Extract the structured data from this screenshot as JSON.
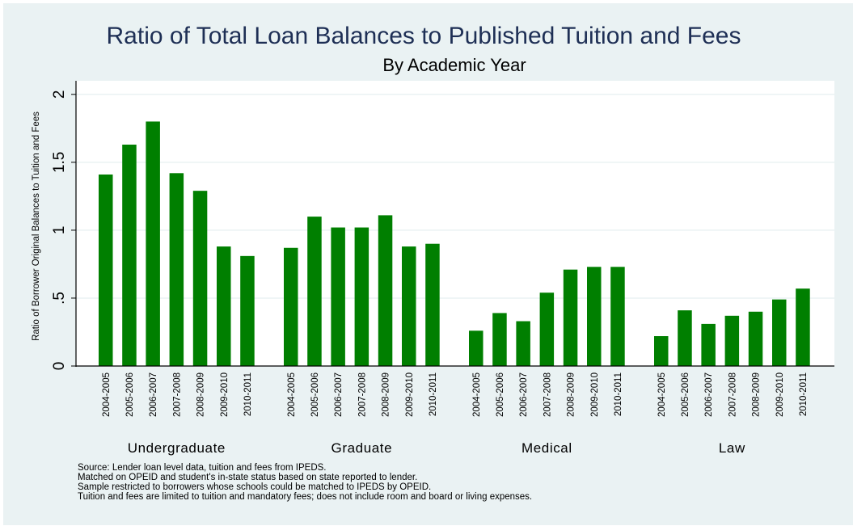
{
  "chart_data": {
    "type": "bar",
    "title": "Ratio of Total Loan Balances to Published Tuition and Fees",
    "subtitle": "By Academic Year",
    "ylabel": "Ratio of Borrower Original Balances to Tuition and Fees",
    "xlabel": "",
    "ylim": [
      0,
      2.1
    ],
    "yticks": [
      {
        "value": 0,
        "label": "0"
      },
      {
        "value": 0.5,
        "label": ".5"
      },
      {
        "value": 1,
        "label": "1"
      },
      {
        "value": 1.5,
        "label": "1.5"
      },
      {
        "value": 2,
        "label": "2"
      }
    ],
    "grid": true,
    "bar_color": "#007f00",
    "groups": [
      {
        "name": "Undergraduate",
        "categories": [
          "2004-2005",
          "2005-2006",
          "2006-2007",
          "2007-2008",
          "2008-2009",
          "2009-2010",
          "2010-2011"
        ],
        "values": [
          1.41,
          1.63,
          1.8,
          1.42,
          1.29,
          0.88,
          0.81
        ]
      },
      {
        "name": "Graduate",
        "categories": [
          "2004-2005",
          "2005-2006",
          "2006-2007",
          "2007-2008",
          "2008-2009",
          "2009-2010",
          "2010-2011"
        ],
        "values": [
          0.87,
          1.1,
          1.02,
          1.02,
          1.11,
          0.88,
          0.9
        ]
      },
      {
        "name": "Medical",
        "categories": [
          "2004-2005",
          "2005-2006",
          "2006-2007",
          "2007-2008",
          "2008-2009",
          "2009-2010",
          "2010-2011"
        ],
        "values": [
          0.26,
          0.39,
          0.33,
          0.54,
          0.71,
          0.73,
          0.73
        ]
      },
      {
        "name": "Law",
        "categories": [
          "2004-2005",
          "2005-2006",
          "2006-2007",
          "2007-2008",
          "2008-2009",
          "2009-2010",
          "2010-2011"
        ],
        "values": [
          0.22,
          0.41,
          0.31,
          0.37,
          0.4,
          0.49,
          0.57
        ]
      }
    ],
    "notes": [
      "Source: Lender loan level data, tuition and fees from IPEDS.",
      "Matched on OPEID and student's in-state status based on state reported to lender.",
      "Sample restricted to borrowers whose schools could be matched to IPEDS by OPEID.",
      "Tuition and fees are limited to tuition and mandatory fees; does not include room and board or living expenses."
    ]
  },
  "colors": {
    "background": "#eaf2f3",
    "plot_background": "#ffffff",
    "bar": "#007f00",
    "title": "#1e2f55",
    "grid": "#eaf2f3"
  }
}
